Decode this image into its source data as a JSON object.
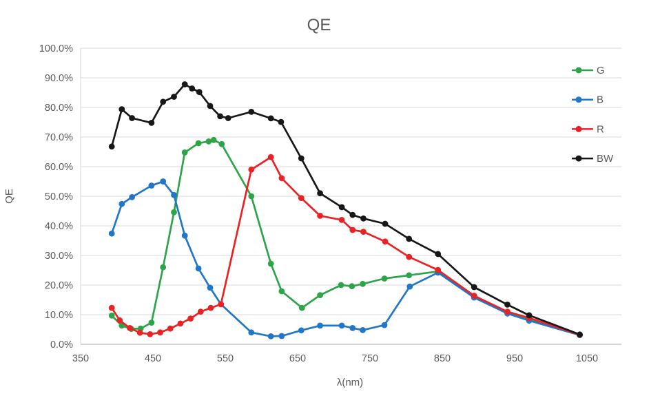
{
  "title": "QE",
  "chart_data": {
    "type": "line",
    "title": "QE",
    "xlabel": "λ(nm)",
    "ylabel": "QE",
    "xlim": [
      350,
      1097
    ],
    "ylim": [
      0,
      100
    ],
    "grid": true,
    "legend_position": "right",
    "x_ticks": [
      350,
      450,
      550,
      650,
      750,
      850,
      950,
      1050
    ],
    "x_tick_labels": [
      "350",
      "450",
      "550",
      "650",
      "750",
      "850",
      "950",
      "1050"
    ],
    "y_ticks": [
      0,
      10,
      20,
      30,
      40,
      50,
      60,
      70,
      80,
      90,
      100
    ],
    "y_tick_labels": [
      "0.0%",
      "10.0%",
      "20.0%",
      "30.0%",
      "40.0%",
      "50.0%",
      "60.0%",
      "70.0%",
      "80.0%",
      "90.0%",
      "100.0%"
    ],
    "colors": {
      "grid": "#D9D9D9",
      "axis_line": "#ABABAB",
      "left_axis_line": "#D6D6D6",
      "text": "#595959"
    },
    "series": [
      {
        "name": "G",
        "color": "#2EA44A",
        "points": [
          [
            393,
            9.7
          ],
          [
            407,
            6.3
          ],
          [
            420,
            5.2
          ],
          [
            433,
            5.3
          ],
          [
            448,
            7.3
          ],
          [
            464,
            26.0
          ],
          [
            479,
            44.6
          ],
          [
            494,
            64.8
          ],
          [
            513,
            67.9
          ],
          [
            527,
            68.5
          ],
          [
            534,
            69.0
          ],
          [
            545,
            67.6
          ],
          [
            586,
            50.0
          ],
          [
            613,
            27.2
          ],
          [
            628,
            17.9
          ],
          [
            656,
            12.3
          ],
          [
            681,
            16.6
          ],
          [
            710,
            20.0
          ],
          [
            725,
            19.6
          ],
          [
            740,
            20.4
          ],
          [
            770,
            22.2
          ],
          [
            804,
            23.3
          ],
          [
            844,
            24.6
          ],
          [
            894,
            16.1
          ],
          [
            940,
            10.7
          ],
          [
            970,
            8.3
          ],
          [
            1040,
            3.2
          ]
        ]
      },
      {
        "name": "B",
        "color": "#2176C7",
        "points": [
          [
            393,
            37.4
          ],
          [
            407,
            47.4
          ],
          [
            421,
            49.7
          ],
          [
            448,
            53.6
          ],
          [
            464,
            55.0
          ],
          [
            479,
            50.4
          ],
          [
            494,
            36.7
          ],
          [
            513,
            25.6
          ],
          [
            529,
            19.1
          ],
          [
            544,
            13.5
          ],
          [
            586,
            4.0
          ],
          [
            613,
            2.7
          ],
          [
            628,
            2.8
          ],
          [
            655,
            4.7
          ],
          [
            681,
            6.3
          ],
          [
            711,
            6.3
          ],
          [
            726,
            5.5
          ],
          [
            740,
            4.8
          ],
          [
            770,
            6.5
          ],
          [
            805,
            19.5
          ],
          [
            844,
            24.2
          ],
          [
            894,
            15.8
          ],
          [
            940,
            10.4
          ],
          [
            970,
            8.0
          ],
          [
            1040,
            3.1
          ]
        ]
      },
      {
        "name": "R",
        "color": "#EB2224",
        "points": [
          [
            393,
            12.3
          ],
          [
            404,
            8.1
          ],
          [
            418,
            5.5
          ],
          [
            432,
            3.9
          ],
          [
            446,
            3.4
          ],
          [
            460,
            4.0
          ],
          [
            474,
            5.3
          ],
          [
            488,
            7.0
          ],
          [
            502,
            8.7
          ],
          [
            516,
            11.0
          ],
          [
            530,
            12.3
          ],
          [
            544,
            13.5
          ],
          [
            586,
            59.0
          ],
          [
            613,
            63.2
          ],
          [
            628,
            56.1
          ],
          [
            655,
            49.4
          ],
          [
            681,
            43.4
          ],
          [
            711,
            42.0
          ],
          [
            726,
            38.6
          ],
          [
            741,
            38.0
          ],
          [
            771,
            34.7
          ],
          [
            804,
            29.5
          ],
          [
            844,
            25.1
          ],
          [
            894,
            16.4
          ],
          [
            940,
            11.0
          ],
          [
            970,
            8.9
          ],
          [
            1040,
            3.2
          ]
        ]
      },
      {
        "name": "BW",
        "color": "#171717",
        "points": [
          [
            393,
            66.8
          ],
          [
            407,
            79.4
          ],
          [
            421,
            76.4
          ],
          [
            448,
            74.8
          ],
          [
            464,
            81.9
          ],
          [
            479,
            83.6
          ],
          [
            494,
            87.8
          ],
          [
            504,
            86.4
          ],
          [
            514,
            85.2
          ],
          [
            529,
            80.5
          ],
          [
            543,
            77.0
          ],
          [
            554,
            76.4
          ],
          [
            586,
            78.5
          ],
          [
            613,
            76.3
          ],
          [
            627,
            75.1
          ],
          [
            655,
            62.8
          ],
          [
            681,
            51.0
          ],
          [
            711,
            46.3
          ],
          [
            726,
            43.7
          ],
          [
            741,
            42.5
          ],
          [
            771,
            40.7
          ],
          [
            804,
            35.6
          ],
          [
            844,
            30.5
          ],
          [
            894,
            19.3
          ],
          [
            940,
            13.4
          ],
          [
            970,
            9.8
          ],
          [
            1040,
            3.3
          ]
        ]
      }
    ]
  }
}
